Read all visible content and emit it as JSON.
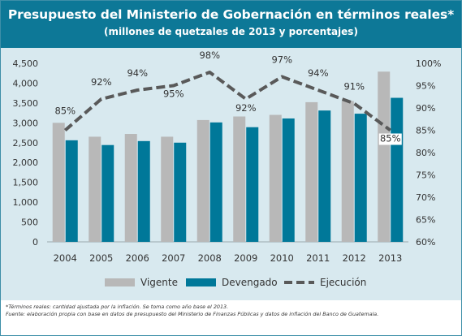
{
  "header": {
    "title": "Presupuesto del Ministerio de Gobernación en términos reales*",
    "subtitle": "(millones de quetzales de 2013 y porcentajes)"
  },
  "colors": {
    "header_bg": "#0d7897",
    "panel_bg": "#d8e9ef",
    "vigente": "#b8b8b8",
    "devengado": "#007899",
    "ejecucion": "#595959"
  },
  "chart_data": {
    "type": "bar",
    "categories": [
      "2004",
      "2005",
      "2006",
      "2007",
      "2008",
      "2009",
      "2010",
      "2011",
      "2012",
      "2013"
    ],
    "series": [
      {
        "name": "Vigente",
        "type": "bar",
        "axis": "left",
        "values": [
          3000,
          2650,
          2720,
          2650,
          3070,
          3160,
          3200,
          3520,
          3550,
          4290
        ]
      },
      {
        "name": "Devengado",
        "type": "bar",
        "axis": "left",
        "values": [
          2560,
          2440,
          2540,
          2500,
          3010,
          2890,
          3110,
          3310,
          3230,
          3630
        ]
      },
      {
        "name": "Ejecución",
        "type": "line",
        "axis": "right",
        "values": [
          85,
          92,
          94,
          95,
          98,
          92,
          97,
          94,
          91,
          85
        ],
        "labels": [
          "85%",
          "92%",
          "94%",
          "95%",
          "98%",
          "92%",
          "97%",
          "94%",
          "91%",
          "85%"
        ]
      }
    ],
    "y_left": {
      "min": 0,
      "max": 4500,
      "ticks": [
        "0",
        "500",
        "1,000",
        "1,500",
        "2,000",
        "2,500",
        "3,000",
        "3,500",
        "4,000",
        "4,500"
      ]
    },
    "y_right": {
      "min": 60,
      "max": 100,
      "ticks": [
        "60%",
        "65%",
        "70%",
        "75%",
        "80%",
        "85%",
        "90%",
        "95%",
        "100%"
      ]
    },
    "grid": false,
    "legend_position": "bottom"
  },
  "notes": {
    "line1": "*Términos reales: cantidad ajustada por la inflación. Se toma como año base el 2013.",
    "line2": "Fuente: elaboración propia con base en datos de presupuesto del Ministerio de Finanzas Públicas y datos de inflación del Banco de Guatemala."
  }
}
